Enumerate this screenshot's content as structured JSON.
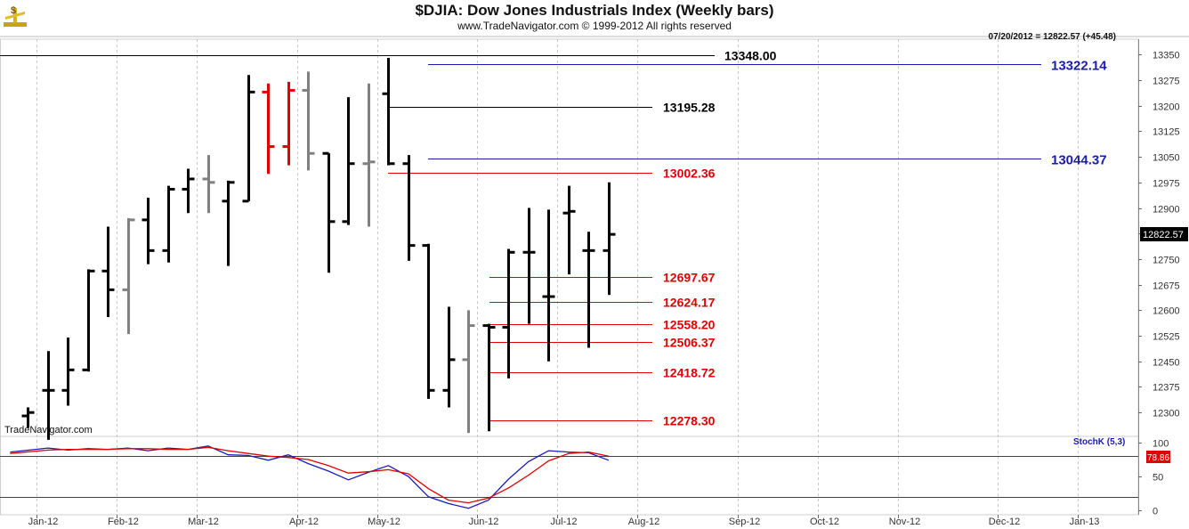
{
  "header": {
    "title": "$DJIA:  Dow Jones Industrials Index  (Weekly bars)",
    "subtitle": "www.TradeNavigator.com © 1999-2012 All rights reserved",
    "stamp": "07/20/2012 = 12822.57 (+45.48)",
    "watermark": "TradeNavigator.com",
    "logo_icon": "dollar-scale-logo"
  },
  "chart_data": [
    {
      "type": "ohlc",
      "title": "$DJIA:  Dow Jones Industrials Index  (Weekly bars)",
      "ylim": [
        12230,
        13395
      ],
      "yticks": [
        12300,
        12375,
        12450,
        12525,
        12600,
        12675,
        12750,
        12825,
        12900,
        12975,
        13050,
        13125,
        13200,
        13275,
        13350
      ],
      "yticklabels": [
        "12300",
        "12375",
        "12450",
        "12525",
        "12600",
        "12675",
        "12750",
        "12825",
        "12900",
        "12975",
        "13050",
        "13125",
        "13200",
        "13275",
        "13350"
      ],
      "last_value": "12822.57",
      "xticklabels": [
        "Jan-12",
        "Feb-12",
        "Mar-12",
        "Apr-12",
        "May-12",
        "Jun-12",
        "Jul-12",
        "Aug-12",
        "Sep-12",
        "Oct-12",
        "Nov-12",
        "Dec-12",
        "Jan-13"
      ],
      "grid": true,
      "bars": [
        {
          "date": "2012-01-06",
          "open": 12290,
          "high": 12315,
          "low": 12255,
          "close": 12300,
          "color": "#000000"
        },
        {
          "date": "2012-01-13",
          "open": 12365,
          "high": 12480,
          "low": 12220,
          "close": 12365,
          "color": "#000000"
        },
        {
          "date": "2012-01-20",
          "open": 12365,
          "high": 12520,
          "low": 12320,
          "close": 12425,
          "color": "#000000"
        },
        {
          "date": "2012-01-27",
          "open": 12425,
          "high": 12720,
          "low": 12420,
          "close": 12715,
          "color": "#000000"
        },
        {
          "date": "2012-02-03",
          "open": 12715,
          "high": 12845,
          "low": 12580,
          "close": 12660,
          "color": "#000000"
        },
        {
          "date": "2012-02-10",
          "open": 12660,
          "high": 12870,
          "low": 12530,
          "close": 12865,
          "color": "#808080"
        },
        {
          "date": "2012-02-17",
          "open": 12865,
          "high": 12930,
          "low": 12735,
          "close": 12775,
          "color": "#000000"
        },
        {
          "date": "2012-02-24",
          "open": 12775,
          "high": 12965,
          "low": 12740,
          "close": 12955,
          "color": "#000000"
        },
        {
          "date": "2012-03-02",
          "open": 12955,
          "high": 13015,
          "low": 12885,
          "close": 12985,
          "color": "#000000"
        },
        {
          "date": "2012-03-09",
          "open": 12985,
          "high": 13055,
          "low": 12885,
          "close": 12975,
          "color": "#808080"
        },
        {
          "date": "2012-03-16",
          "open": 12920,
          "high": 12980,
          "low": 12730,
          "close": 12975,
          "color": "#000000"
        },
        {
          "date": "2012-03-23",
          "open": 12920,
          "high": 13290,
          "low": 12920,
          "close": 13240,
          "color": "#000000"
        },
        {
          "date": "2012-03-30",
          "open": 13240,
          "high": 13265,
          "low": 13000,
          "close": 13080,
          "color": "#e00000"
        },
        {
          "date": "2012-04-06",
          "open": 13080,
          "high": 13270,
          "low": 13025,
          "close": 13245,
          "color": "#e00000"
        },
        {
          "date": "2012-04-13",
          "open": 13245,
          "high": 13300,
          "low": 13010,
          "close": 13060,
          "color": "#808080"
        },
        {
          "date": "2012-04-20",
          "open": 13060,
          "high": 13060,
          "low": 12710,
          "close": 12860,
          "color": "#000000"
        },
        {
          "date": "2012-04-27",
          "open": 12860,
          "high": 13225,
          "low": 12850,
          "close": 13030,
          "color": "#000000"
        },
        {
          "date": "2012-05-04",
          "open": 13030,
          "high": 13265,
          "low": 12845,
          "close": 13035,
          "color": "#808080"
        },
        {
          "date": "2012-05-11",
          "open": 13235,
          "high": 13340,
          "low": 13025,
          "close": 13030,
          "color": "#000000"
        },
        {
          "date": "2012-05-18",
          "open": 13030,
          "high": 13055,
          "low": 12745,
          "close": 12790,
          "color": "#000000"
        },
        {
          "date": "2012-05-25",
          "open": 12790,
          "high": 12795,
          "low": 12340,
          "close": 12365,
          "color": "#000000"
        },
        {
          "date": "2012-06-01",
          "open": 12365,
          "high": 12610,
          "low": 12315,
          "close": 12455,
          "color": "#000000"
        },
        {
          "date": "2012-06-08",
          "open": 12455,
          "high": 12600,
          "low": 12240,
          "close": 12555,
          "color": "#808080"
        },
        {
          "date": "2012-06-15",
          "open": 12555,
          "high": 12560,
          "low": 12245,
          "close": 12550,
          "color": "#000000"
        },
        {
          "date": "2012-06-22",
          "open": 12550,
          "high": 12780,
          "low": 12400,
          "close": 12770,
          "color": "#000000"
        },
        {
          "date": "2012-06-29",
          "open": 12770,
          "high": 12900,
          "low": 12560,
          "close": 12770,
          "color": "#000000"
        },
        {
          "date": "2012-07-06",
          "open": 12640,
          "high": 12895,
          "low": 12450,
          "close": 12640,
          "color": "#000000"
        },
        {
          "date": "2012-07-13",
          "open": 12885,
          "high": 12965,
          "low": 12705,
          "close": 12890,
          "color": "#000000"
        },
        {
          "date": "2012-07-20",
          "open": 12775,
          "high": 12830,
          "low": 12490,
          "close": 12775,
          "color": "#000000"
        },
        {
          "date": "2012-07-27",
          "open": 12775,
          "high": 12975,
          "low": 12645,
          "close": 12822.57,
          "color": "#000000"
        }
      ],
      "levels": [
        {
          "value": "13348.00",
          "color": "#000000"
        },
        {
          "value": "13322.14",
          "color": "#1a1ab8"
        },
        {
          "value": "13195.28",
          "color": "#000000"
        },
        {
          "value": "13044.37",
          "color": "#1a1ab8"
        },
        {
          "value": "13002.36",
          "color": "#e00000"
        },
        {
          "value": "12697.67",
          "color": "#e00000"
        },
        {
          "value": "12624.17",
          "color": "#e00000"
        },
        {
          "value": "12558.20",
          "color": "#e00000"
        },
        {
          "value": "12506.37",
          "color": "#e00000"
        },
        {
          "value": "12418.72",
          "color": "#e00000"
        },
        {
          "value": "12278.30",
          "color": "#e00000"
        }
      ]
    },
    {
      "type": "line",
      "title": "StochK (5,3)",
      "ylim": [
        0,
        100
      ],
      "yticks": [
        0,
        50,
        100
      ],
      "yticklabels": [
        "0",
        "50",
        "100"
      ],
      "reference_lines": [
        80,
        20
      ],
      "last_value": "78.86",
      "series": [
        {
          "color": "#1a1ab8",
          "values": [
            86,
            92,
            89,
            91,
            90,
            92,
            88,
            92,
            90,
            95,
            82,
            81,
            74,
            82,
            69,
            58,
            45,
            56,
            66,
            50,
            20,
            10,
            3,
            15,
            46,
            72,
            88,
            86,
            85,
            74
          ]
        },
        {
          "color": "#e00000",
          "values": [
            84,
            89,
            90,
            90,
            90,
            91,
            91,
            90,
            90,
            93,
            88,
            84,
            80,
            78,
            75,
            66,
            55,
            57,
            60,
            54,
            32,
            15,
            11,
            18,
            33,
            52,
            73,
            84,
            86,
            80
          ]
        }
      ]
    }
  ]
}
